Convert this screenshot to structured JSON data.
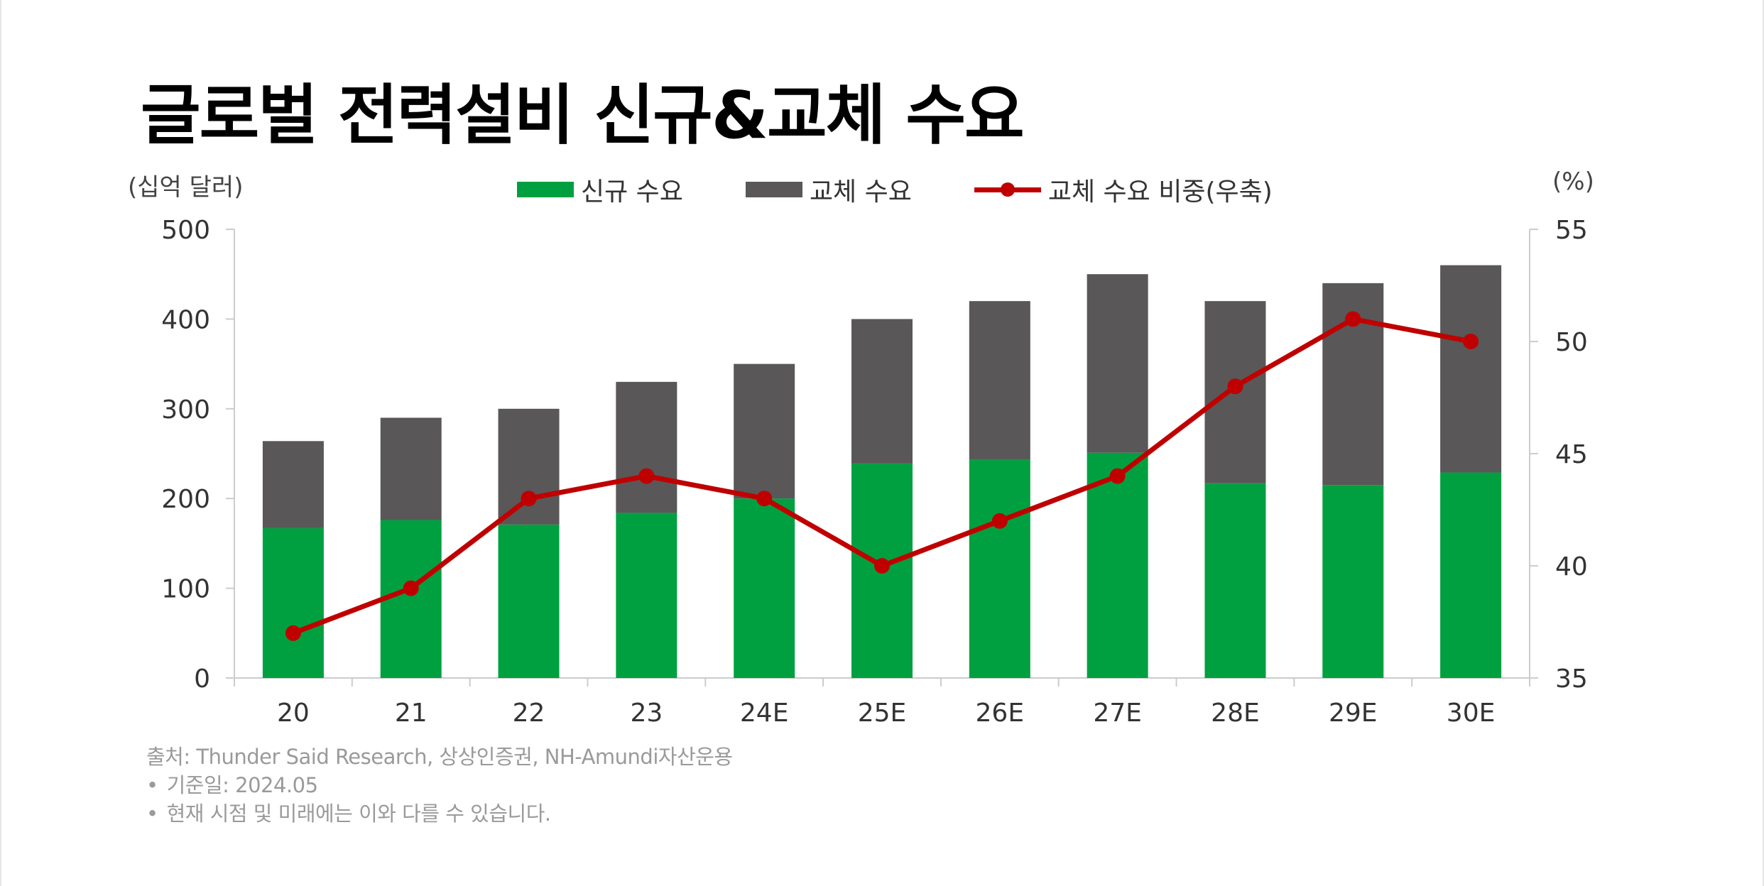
{
  "title": "글로벌 전력설비 신규&교체 수요",
  "unit_left": "(십억 달러)",
  "unit_right": "(%)",
  "legend": {
    "new": "신규 수요",
    "replace": "교체 수요",
    "ratio": "교체 수요 비중(우축)"
  },
  "colors": {
    "new": "#00a040",
    "replace": "#595757",
    "ratio": "#c00000",
    "axis": "#cccccc"
  },
  "chart_data": {
    "type": "bar",
    "stacked": true,
    "categories": [
      "20",
      "21",
      "22",
      "23",
      "24E",
      "25E",
      "26E",
      "27E",
      "28E",
      "29E",
      "30E"
    ],
    "series": [
      {
        "name": "신규 수요",
        "axis": "left",
        "values": [
          167,
          176,
          171,
          184,
          200,
          239,
          243,
          251,
          217,
          215,
          229
        ]
      },
      {
        "name": "교체 수요",
        "axis": "left",
        "values": [
          97,
          114,
          129,
          146,
          150,
          161,
          177,
          199,
          203,
          225,
          231
        ]
      },
      {
        "name": "교체 수요 비중(우축)",
        "axis": "right",
        "type": "line",
        "values": [
          37,
          39,
          43,
          44,
          43,
          40,
          42,
          44,
          48,
          51,
          50
        ]
      }
    ],
    "y_left": {
      "lim": [
        0,
        500
      ],
      "ticks": [
        0,
        100,
        200,
        300,
        400,
        500
      ]
    },
    "y_right": {
      "lim": [
        35,
        55
      ],
      "ticks": [
        35,
        40,
        45,
        50,
        55
      ]
    },
    "legend_position": "top-center",
    "grid": false
  },
  "footer": {
    "source": "출처: Thunder Said Research, 상상인증권, NH-Amundi자산운용",
    "bullet": "•",
    "base_date": "기준일: 2024.05",
    "disclaimer": "현재 시점 및 미래에는 이와 다를 수 있습니다."
  }
}
